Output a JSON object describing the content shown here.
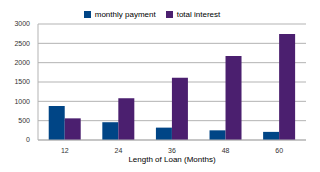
{
  "chart_data": {
    "type": "bar",
    "x_label": "Length of Loan (Months)",
    "categories": [
      "12",
      "24",
      "36",
      "48",
      "60"
    ],
    "series": [
      {
        "name": "monthly payment",
        "color": "#004586",
        "values": [
          880,
          460,
          320,
          250,
          210
        ]
      },
      {
        "name": "total interest",
        "color": "#4b1f6f",
        "values": [
          560,
          1080,
          1610,
          2170,
          2740
        ]
      }
    ],
    "ylim": [
      0,
      3000
    ],
    "yticks": [
      0,
      500,
      1000,
      1500,
      2000,
      2500,
      3000
    ],
    "grid": true,
    "legend": "top"
  }
}
